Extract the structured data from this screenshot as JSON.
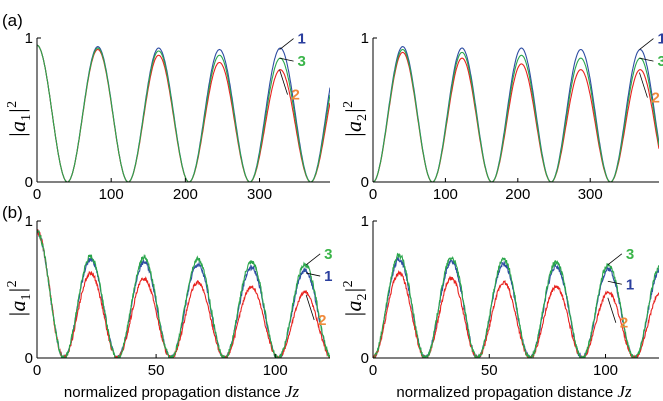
{
  "panel_labels": [
    "(a)",
    "(b)"
  ],
  "colors": {
    "s1": "#2e4da3",
    "s2": "#e8231f",
    "s3": "#2aa64b",
    "ann1": "#2b3f9e",
    "ann2": "#f08a3c",
    "ann3": "#3bb54a"
  },
  "chart_data": [
    {
      "type": "line",
      "panel": "(a)",
      "ylabel_base": "|a",
      "ylabel_sub": "1",
      "ylabel_close": "|",
      "ylabel_sup": "2",
      "xlabel_text": "",
      "xlabel_var": "",
      "xlim": [
        0,
        395
      ],
      "ylim": [
        0,
        1
      ],
      "xticks": [
        0,
        100,
        200,
        300
      ],
      "yticks": [
        0,
        1
      ],
      "xtick_labels": [
        "0",
        "100",
        "200",
        "300"
      ],
      "ytick_labels": [
        "0",
        "1"
      ],
      "period": 82,
      "series": [
        {
          "key": "1",
          "color": "#2e4da3",
          "peaks": [
            0.95,
            0.94,
            0.93,
            0.92,
            0.93
          ],
          "noise": 0
        },
        {
          "key": "2",
          "color": "#e8231f",
          "peaks": [
            0.95,
            0.92,
            0.88,
            0.83,
            0.78
          ],
          "noise": 0
        },
        {
          "key": "3",
          "color": "#2aa64b",
          "peaks": [
            0.95,
            0.93,
            0.91,
            0.88,
            0.86
          ],
          "noise": 0
        }
      ],
      "annotations": [
        {
          "text": "1",
          "at": [
            327,
            0.92
          ],
          "color": "#2b3f9e"
        },
        {
          "text": "3",
          "at": [
            327,
            0.86
          ],
          "color": "#3bb54a"
        },
        {
          "text": "2",
          "at": [
            327,
            0.78
          ],
          "color": "#f08a3c"
        }
      ]
    },
    {
      "type": "line",
      "panel": "(a)",
      "ylabel_base": "|a",
      "ylabel_sub": "2",
      "ylabel_close": "|",
      "ylabel_sup": "2",
      "xlabel_text": "",
      "xlabel_var": "",
      "xlim": [
        0,
        395
      ],
      "ylim": [
        0,
        1
      ],
      "xticks": [
        0,
        100,
        200,
        300
      ],
      "yticks": [
        0,
        1
      ],
      "xtick_labels": [
        "0",
        "100",
        "200",
        "300"
      ],
      "ytick_labels": [
        "0",
        "1"
      ],
      "period": 82,
      "phase": 41,
      "series": [
        {
          "key": "1",
          "color": "#2e4da3",
          "peaks": [
            0.95,
            0.94,
            0.93,
            0.93,
            0.92
          ],
          "noise": 0
        },
        {
          "key": "2",
          "color": "#e8231f",
          "peaks": [
            0.93,
            0.9,
            0.86,
            0.82,
            0.78
          ],
          "noise": 0
        },
        {
          "key": "3",
          "color": "#2aa64b",
          "peaks": [
            0.94,
            0.92,
            0.9,
            0.88,
            0.86
          ],
          "noise": 0
        }
      ],
      "annotations": [
        {
          "text": "1",
          "at": [
            368,
            0.92
          ],
          "color": "#2b3f9e"
        },
        {
          "text": "3",
          "at": [
            368,
            0.86
          ],
          "color": "#3bb54a"
        },
        {
          "text": "2",
          "at": [
            368,
            0.76
          ],
          "color": "#f08a3c"
        }
      ]
    },
    {
      "type": "line",
      "panel": "(b)",
      "ylabel_base": "|a",
      "ylabel_sub": "1",
      "ylabel_close": "|",
      "ylabel_sup": "2",
      "xlabel_text": "normalized propagation distance ",
      "xlabel_var": "Jz",
      "xlim": [
        0,
        123
      ],
      "ylim": [
        0,
        1
      ],
      "xticks": [
        0,
        50,
        100
      ],
      "yticks": [
        0,
        1
      ],
      "xtick_labels": [
        "0",
        "50",
        "100"
      ],
      "ytick_labels": [
        "0",
        "1"
      ],
      "period": 22.5,
      "phase": 0,
      "series": [
        {
          "key": "1",
          "color": "#2e4da3",
          "peaks": [
            0.92,
            0.72,
            0.7,
            0.68,
            0.66,
            0.64
          ],
          "noise": 0.05
        },
        {
          "key": "2",
          "color": "#e8231f",
          "peaks": [
            0.92,
            0.62,
            0.58,
            0.55,
            0.52,
            0.48
          ],
          "noise": 0.05
        },
        {
          "key": "3",
          "color": "#2aa64b",
          "peaks": [
            0.92,
            0.74,
            0.73,
            0.72,
            0.7,
            0.68
          ],
          "noise": 0.05
        }
      ],
      "annotations": [
        {
          "text": "3",
          "at": [
            113,
            0.68
          ],
          "color": "#3bb54a"
        },
        {
          "text": "1",
          "at": [
            113,
            0.62
          ],
          "color": "#2b3f9e"
        },
        {
          "text": "2",
          "at": [
            113,
            0.46
          ],
          "color": "#f08a3c"
        }
      ]
    },
    {
      "type": "line",
      "panel": "(b)",
      "ylabel_base": "|a",
      "ylabel_sub": "2",
      "ylabel_close": "|",
      "ylabel_sup": "2",
      "xlabel_text": "normalized propagation distance ",
      "xlabel_var": "Jz",
      "xlim": [
        0,
        123
      ],
      "ylim": [
        0,
        1
      ],
      "xticks": [
        0,
        50,
        100
      ],
      "yticks": [
        0,
        1
      ],
      "xtick_labels": [
        "0",
        "50",
        "100"
      ],
      "ytick_labels": [
        "0",
        "1"
      ],
      "period": 22.5,
      "phase": 11.25,
      "series": [
        {
          "key": "1",
          "color": "#2e4da3",
          "peaks": [
            0.78,
            0.72,
            0.7,
            0.69,
            0.67,
            0.65
          ],
          "noise": 0.05
        },
        {
          "key": "2",
          "color": "#e8231f",
          "peaks": [
            0.7,
            0.62,
            0.58,
            0.55,
            0.52,
            0.48
          ],
          "noise": 0.05
        },
        {
          "key": "3",
          "color": "#2aa64b",
          "peaks": [
            0.8,
            0.75,
            0.73,
            0.72,
            0.7,
            0.68
          ],
          "noise": 0.05
        }
      ],
      "annotations": [
        {
          "text": "3",
          "at": [
            101,
            0.68
          ],
          "color": "#3bb54a"
        },
        {
          "text": "1",
          "at": [
            101,
            0.56
          ],
          "color": "#2b3f9e"
        },
        {
          "text": "2",
          "at": [
            101,
            0.44
          ],
          "color": "#f08a3c"
        }
      ]
    }
  ]
}
